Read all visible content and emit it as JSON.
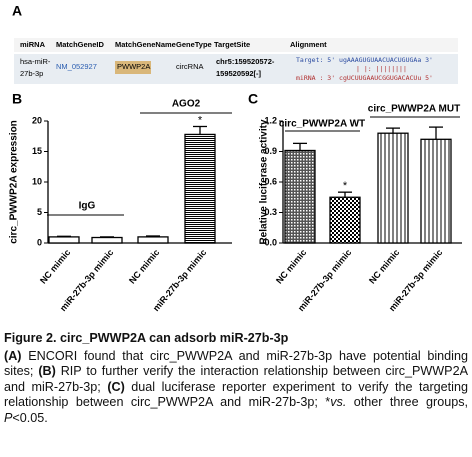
{
  "panels": [
    "A",
    "B",
    "C"
  ],
  "table": {
    "header": [
      "miRNA",
      "MatchGeneID",
      "MatchGeneName",
      "GeneType",
      "TargetSite",
      "Alignment"
    ],
    "row": {
      "mirna": [
        "hsa-miR-",
        "27b-3p"
      ],
      "gene_id": "NM_052927",
      "gene_name": "PWWP2A",
      "gene_type": "circRNA",
      "target_site": [
        "chr5:159520572-",
        "159520592[-]"
      ],
      "alignment": [
        "Target: 5' ugAAAGUGUAACUACUGUGAa 3'",
        "| |: ||||||||",
        "miRNA : 3' cgUCUUGAAUCGGUGACACUu 5'"
      ]
    }
  },
  "chart_data": [
    {
      "type": "bar",
      "ylabel": "circ_PWWP2A expression",
      "categories": [
        "NC mimic",
        "miR-27b-3p mimic",
        "NC mimic",
        "miR-27b-3p mimic"
      ],
      "values": [
        1.0,
        0.9,
        1.0,
        17.8
      ],
      "errors": [
        0.1,
        0.1,
        0.15,
        1.3
      ],
      "patterns": [
        "none",
        "none",
        "none",
        "horizontal"
      ],
      "color": "#000000",
      "ylim": [
        0,
        20
      ],
      "yticks": [
        0,
        5,
        10,
        15,
        20
      ],
      "annotations": [
        "IgG",
        "AGO2",
        "*"
      ]
    },
    {
      "type": "bar",
      "ylabel": "Relative luciferase activity",
      "categories": [
        "NC mimic",
        "miR-27b-3p mimic",
        "NC mimic",
        "miR-27b-3p mimic"
      ],
      "values": [
        0.91,
        0.45,
        1.08,
        1.02
      ],
      "errors": [
        0.07,
        0.05,
        0.05,
        0.12
      ],
      "patterns": [
        "dense",
        "checker",
        "vertical",
        "vertical"
      ],
      "color": "#000000",
      "ylim": [
        0,
        1.2
      ],
      "yticks": [
        {
          "value": 0,
          "label": "0.0"
        },
        0.3,
        0.6,
        0.9,
        1.2
      ],
      "annotations": [
        "circ_PWWP2A WT",
        "circ_PWWP2A MUT",
        "*"
      ]
    }
  ],
  "caption": {
    "title": "Figure 2. circ_PWWP2A can adsorb miR-27b-3p",
    "parts": [
      "(A)",
      " ENCORI found that circ_PWWP2A and miR-27b-3p have potential binding sites; ",
      "(B)",
      " RIP to further verify the interaction relationship between circ_PWWP2A and miR-27b-3p; ",
      "(C)",
      " dual luciferase reporter experiment to verify the targeting relationship between circ_PWWP2A and miR-27b-3p; *",
      "vs.",
      " other three groups, ",
      "P",
      "<0.05."
    ]
  }
}
